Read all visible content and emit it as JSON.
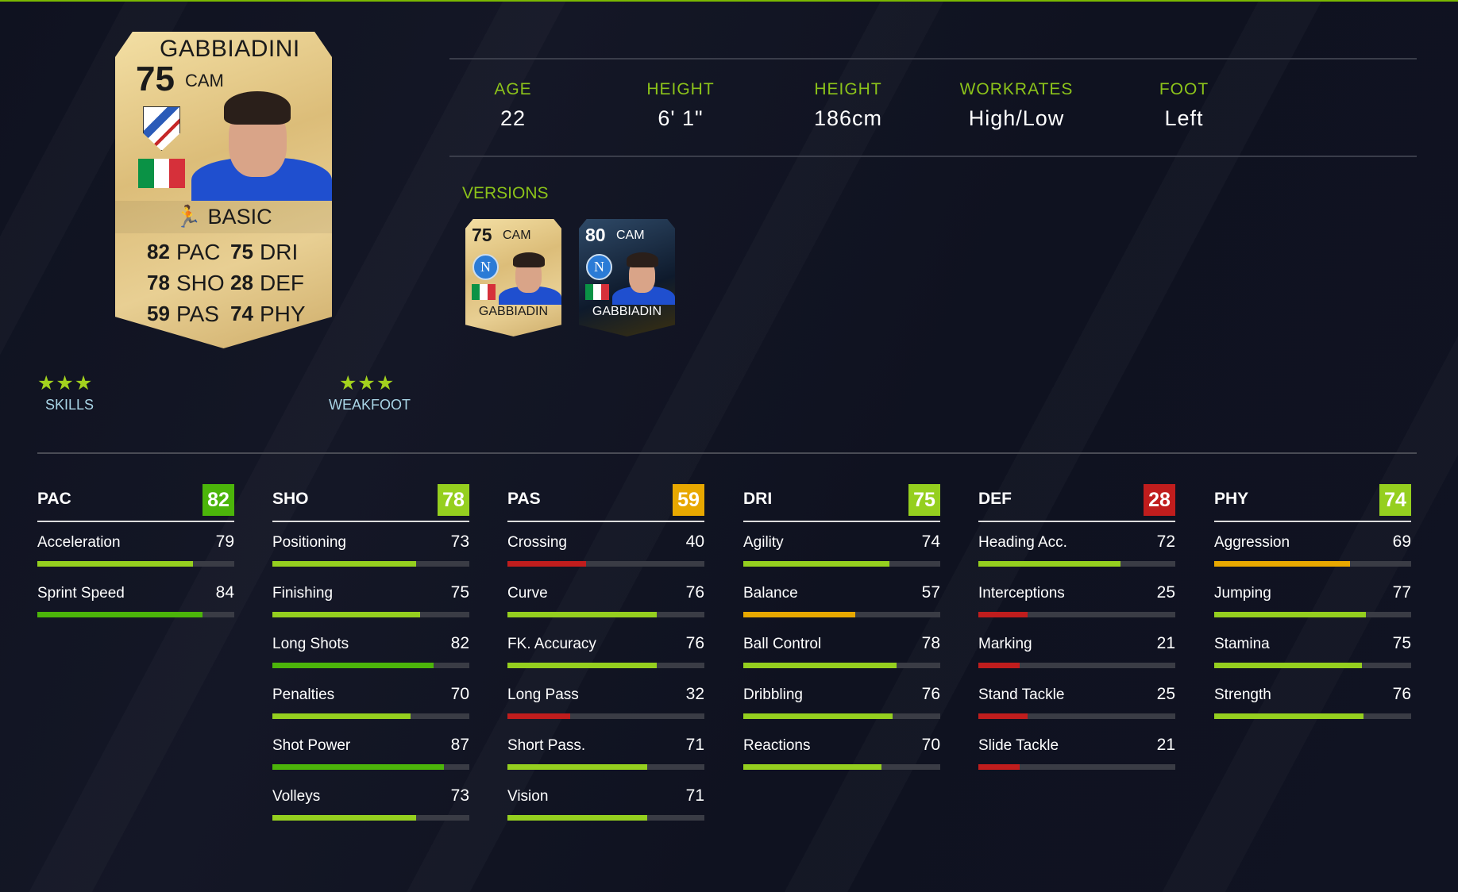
{
  "player": {
    "name": "GABBIADINI",
    "rating": "75",
    "position": "CAM",
    "card_type": "BASIC",
    "club": "Sampdoria crest",
    "nation": "Italy flag",
    "card_stats": [
      {
        "v": "82",
        "k": "PAC"
      },
      {
        "v": "75",
        "k": "DRI"
      },
      {
        "v": "78",
        "k": "SHO"
      },
      {
        "v": "28",
        "k": "DEF"
      },
      {
        "v": "59",
        "k": "PAS"
      },
      {
        "v": "74",
        "k": "PHY"
      }
    ]
  },
  "info": [
    {
      "label": "AGE",
      "value": "22"
    },
    {
      "label": "HEIGHT",
      "value": "6' 1\""
    },
    {
      "label": "HEIGHT",
      "value": "186cm"
    },
    {
      "label": "WORKRATES",
      "value": "High/Low"
    },
    {
      "label": "FOOT",
      "value": "Left"
    }
  ],
  "versions": {
    "label": "VERSIONS",
    "items": [
      {
        "rating": "75",
        "position": "CAM",
        "name": "GABBIADIN",
        "club_letter": "N"
      },
      {
        "rating": "80",
        "position": "CAM",
        "name": "GABBIADIN",
        "club_letter": "N"
      }
    ]
  },
  "skills": {
    "stars": 3,
    "glyphs": "★★★",
    "label": "SKILLS"
  },
  "weakfoot": {
    "stars": 3,
    "glyphs": "★★★",
    "label": "WEAKFOOT"
  },
  "colors": {
    "accent": "#8cc31a",
    "dark_green": "#4cb50a",
    "green": "#95cf1f",
    "yellow": "#e8a800",
    "red": "#c01d1d"
  },
  "categories": [
    {
      "name": "PAC",
      "value": "82",
      "attrs": [
        {
          "n": "Acceleration",
          "v": "79"
        },
        {
          "n": "Sprint Speed",
          "v": "84"
        }
      ]
    },
    {
      "name": "SHO",
      "value": "78",
      "attrs": [
        {
          "n": "Positioning",
          "v": "73"
        },
        {
          "n": "Finishing",
          "v": "75"
        },
        {
          "n": "Long Shots",
          "v": "82"
        },
        {
          "n": "Penalties",
          "v": "70"
        },
        {
          "n": "Shot Power",
          "v": "87"
        },
        {
          "n": "Volleys",
          "v": "73"
        }
      ]
    },
    {
      "name": "PAS",
      "value": "59",
      "attrs": [
        {
          "n": "Crossing",
          "v": "40"
        },
        {
          "n": "Curve",
          "v": "76"
        },
        {
          "n": "FK. Accuracy",
          "v": "76"
        },
        {
          "n": "Long Pass",
          "v": "32"
        },
        {
          "n": "Short Pass.",
          "v": "71"
        },
        {
          "n": "Vision",
          "v": "71"
        }
      ]
    },
    {
      "name": "DRI",
      "value": "75",
      "attrs": [
        {
          "n": "Agility",
          "v": "74"
        },
        {
          "n": "Balance",
          "v": "57"
        },
        {
          "n": "Ball Control",
          "v": "78"
        },
        {
          "n": "Dribbling",
          "v": "76"
        },
        {
          "n": "Reactions",
          "v": "70"
        }
      ]
    },
    {
      "name": "DEF",
      "value": "28",
      "attrs": [
        {
          "n": "Heading Acc.",
          "v": "72"
        },
        {
          "n": "Interceptions",
          "v": "25"
        },
        {
          "n": "Marking",
          "v": "21"
        },
        {
          "n": "Stand Tackle",
          "v": "25"
        },
        {
          "n": "Slide Tackle",
          "v": "21"
        }
      ]
    },
    {
      "name": "PHY",
      "value": "74",
      "attrs": [
        {
          "n": "Aggression",
          "v": "69"
        },
        {
          "n": "Jumping",
          "v": "77"
        },
        {
          "n": "Stamina",
          "v": "75"
        },
        {
          "n": "Strength",
          "v": "76"
        }
      ]
    }
  ]
}
